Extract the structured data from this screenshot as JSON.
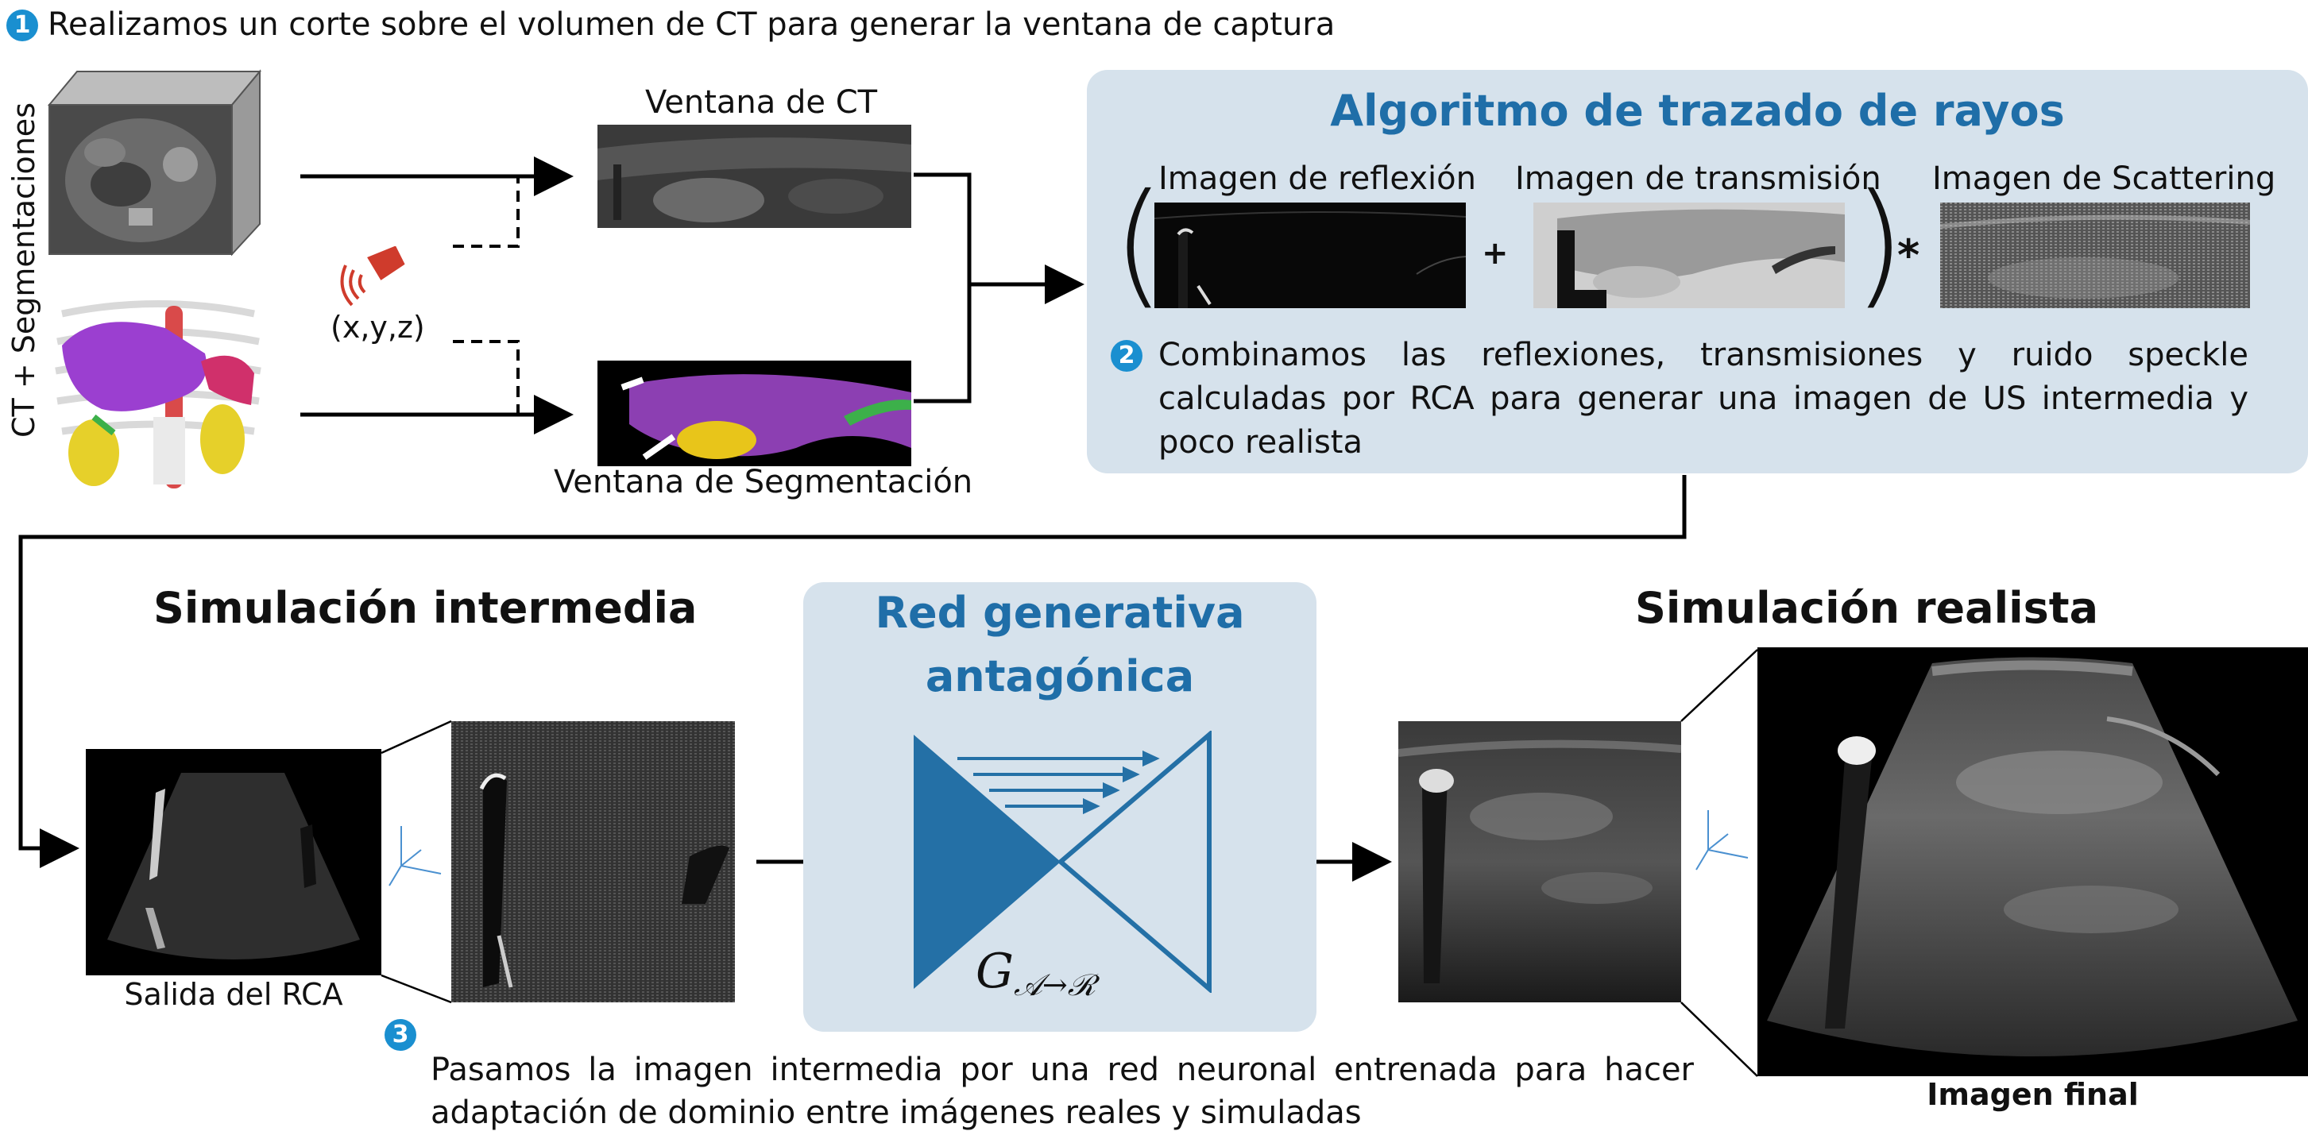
{
  "step1": {
    "number": "1",
    "text": "Realizamos un corte sobre el volumen de CT para generar la ventana de captura"
  },
  "side_label": "CT + Segmentaciones",
  "probe_coords": "(x,y,z)",
  "ct_window_label": "Ventana de CT",
  "seg_window_label": "Ventana de Segmentación",
  "raytrace": {
    "title": "Algoritmo de trazado de rayos",
    "reflection_label": "Imagen de reflexión",
    "transmission_label": "Imagen de transmisión",
    "scattering_label": "Imagen de Scattering",
    "plus": "+",
    "times": "*",
    "step_number": "2",
    "step_text": "Combinamos las reflexiones, transmisiones y ruido speckle calculadas por RCA para generar una imagen de US intermedia y poco realista"
  },
  "intermediate": {
    "title": "Simulación intermedia",
    "caption": "Salida del RCA"
  },
  "gan": {
    "title_line1": "Red generativa",
    "title_line2": "antagónica",
    "formula": "G",
    "formula_sub": "𝒜→ℛ"
  },
  "realistic": {
    "title": "Simulación realista",
    "caption": "Imagen final"
  },
  "step3": {
    "number": "3",
    "text": "Pasamos la imagen intermedia por una red neuronal entrenada para hacer adaptación de dominio entre imágenes reales y simuladas"
  },
  "colors": {
    "accent": "#1a8fd0",
    "panel": "#d6e2ec",
    "title_blue": "#1f6ea8",
    "gan_blue": "#2470a6"
  },
  "icons": [
    "ct-volume-icon",
    "organ-model-icon",
    "probe-icon",
    "axes-icon"
  ]
}
